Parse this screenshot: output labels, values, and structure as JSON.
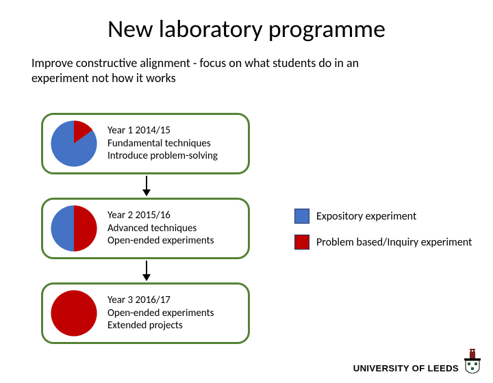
{
  "title": "New laboratory programme",
  "subtitle": "Improve constructive alignment - focus on what students do in an experiment not how it works",
  "colors": {
    "expository": "#4472c4",
    "problem": "#c00000",
    "border": "#548235",
    "swatch_border": "#203864",
    "arrow": "#000000"
  },
  "cards": [
    {
      "line1": "Year 1 2014/15",
      "line2": "Fundamental techniques",
      "line3": "Introduce problem-solving",
      "pie": {
        "problem_pct": 15,
        "expository_pct": 85
      }
    },
    {
      "line1": "Year 2 2015/16",
      "line2": "Advanced techniques",
      "line3": "Open-ended experiments",
      "pie": {
        "problem_pct": 50,
        "expository_pct": 50
      }
    },
    {
      "line1": "Year 3 2016/17",
      "line2": "Open-ended experiments",
      "line3": "Extended projects",
      "pie": {
        "problem_pct": 100,
        "expository_pct": 0
      }
    }
  ],
  "legend": [
    {
      "color_key": "expository",
      "label": "Expository experiment"
    },
    {
      "color_key": "problem",
      "label": "Problem based/Inquiry experiment"
    }
  ],
  "logo_text": "UNIVERSITY OF LEEDS",
  "fonts": {
    "title": 36,
    "subtitle": 18,
    "card": 15,
    "legend": 16
  }
}
